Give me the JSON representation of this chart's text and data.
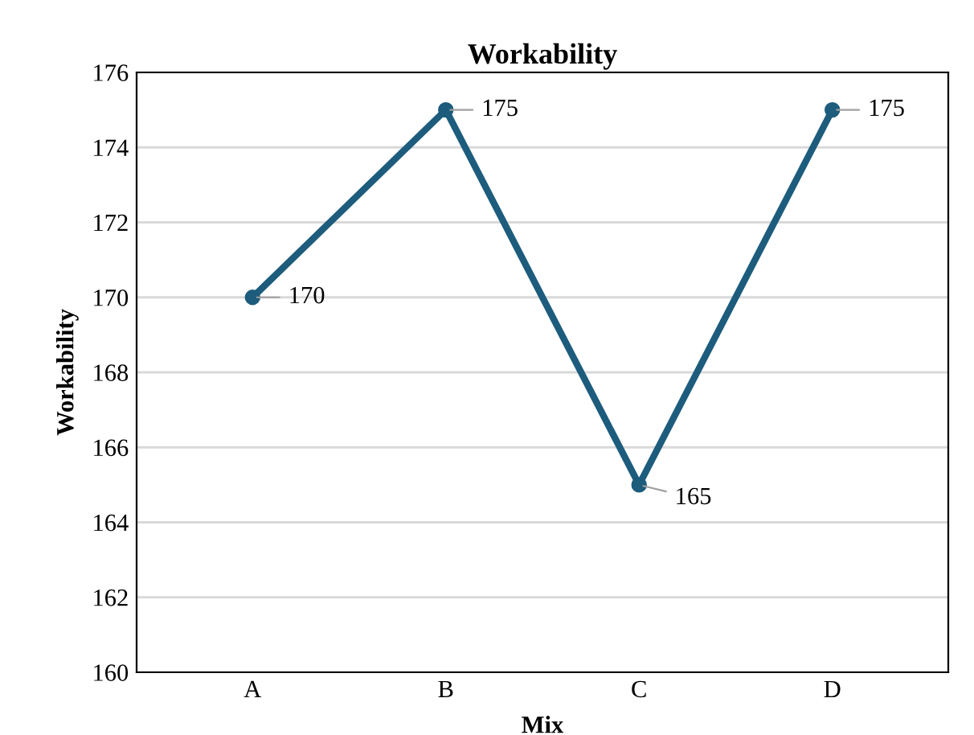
{
  "chart_data": {
    "type": "line",
    "title": "Workability",
    "xlabel": "Mix",
    "ylabel": "Workability",
    "categories": [
      "A",
      "B",
      "C",
      "D"
    ],
    "series": [
      {
        "color": "#1d5c7c",
        "values": [
          170,
          175,
          165,
          175
        ]
      }
    ],
    "ylim": [
      160,
      176
    ],
    "yticks": [
      160,
      162,
      164,
      166,
      168,
      170,
      172,
      174,
      176
    ],
    "grid": "y",
    "marker": "circle",
    "line_style": "solid",
    "data_labels": true,
    "legend": false
  }
}
